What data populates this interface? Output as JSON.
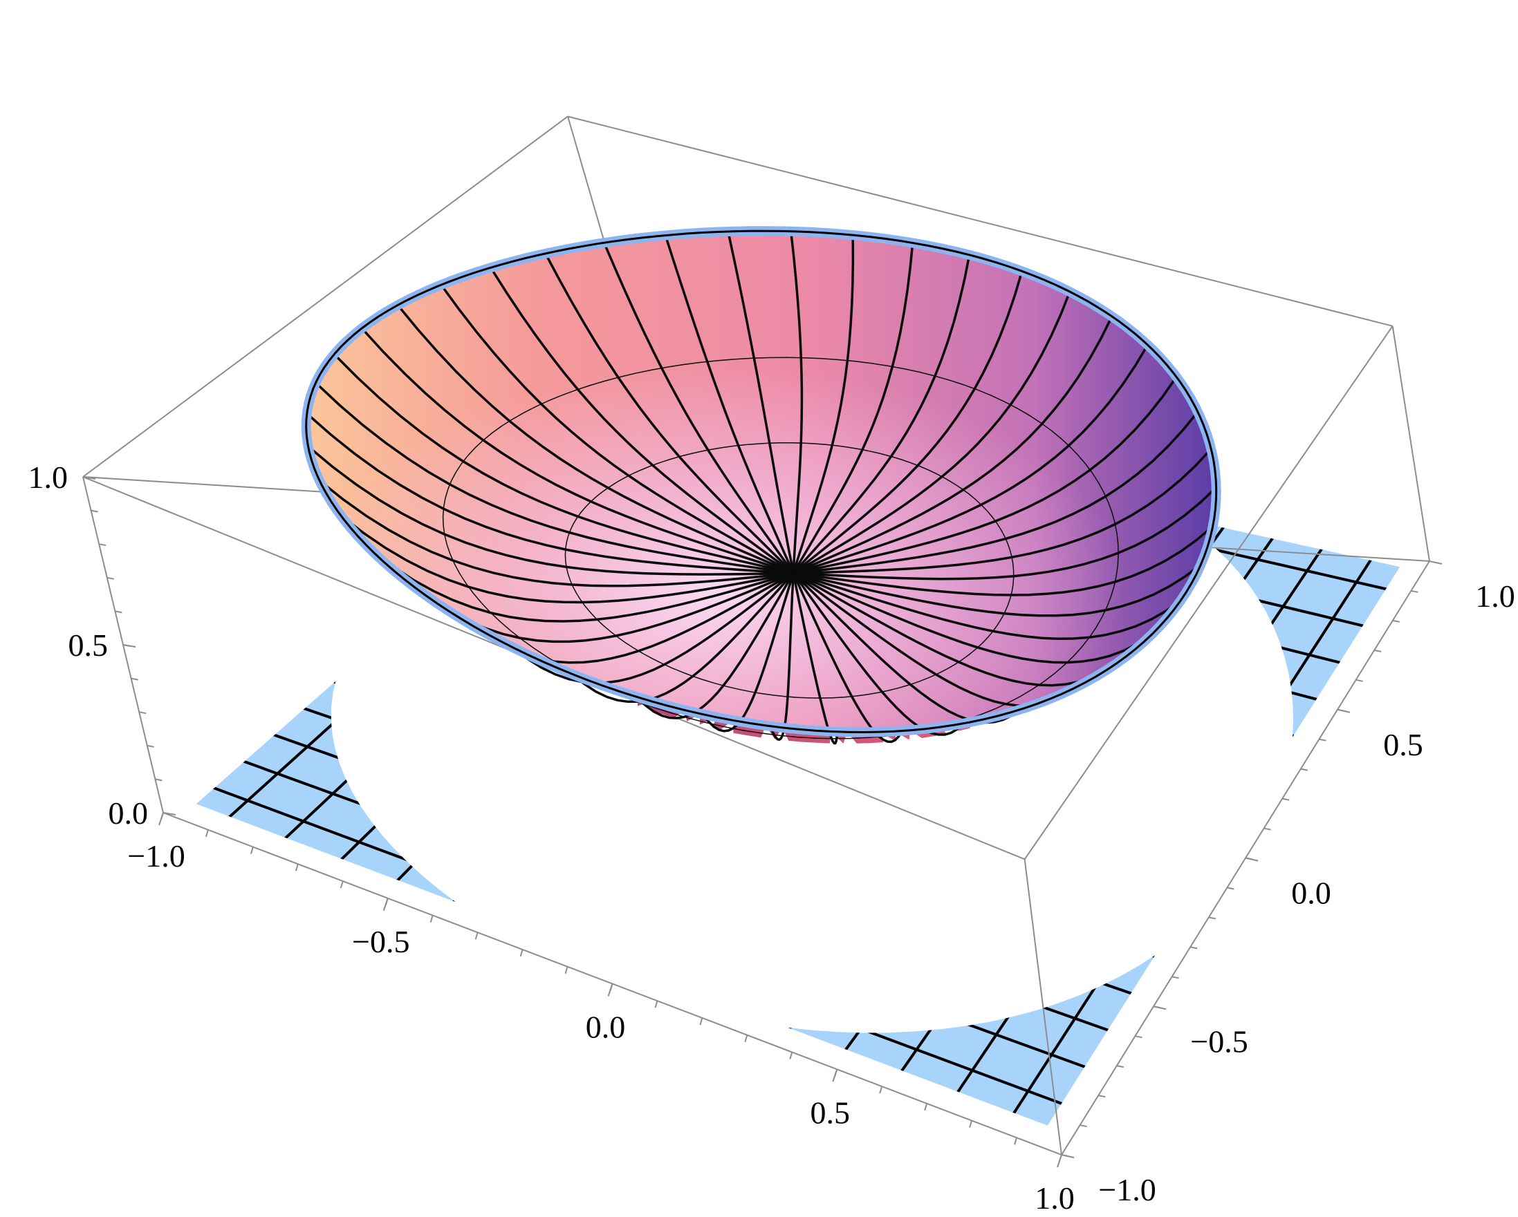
{
  "chart_data": {
    "type": "surface3d",
    "title": "",
    "xlabel": "",
    "ylabel": "",
    "zlabel": "",
    "x_ticks": [
      "−1.0",
      "−0.5",
      "0.0",
      "0.5",
      "1.0"
    ],
    "y_ticks": [
      "−1.0",
      "−0.5",
      "0.0",
      "0.5",
      "1.0"
    ],
    "z_ticks": [
      "0.0",
      "0.5",
      "1.0"
    ],
    "xlim": [
      -1.0,
      1.0
    ],
    "ylim": [
      -1.0,
      1.0
    ],
    "zlim": [
      0.0,
      1.0
    ],
    "box": true,
    "grid": false,
    "series": [
      {
        "name": "",
        "kind": "bowl surface",
        "colormap": "pink-purple",
        "color": "#e8708a"
      },
      {
        "name": "",
        "kind": "floor surface with hole",
        "color": "#a8d4fb"
      }
    ],
    "rim_color": "#8cb4f0",
    "mesh_color": "#000000"
  }
}
